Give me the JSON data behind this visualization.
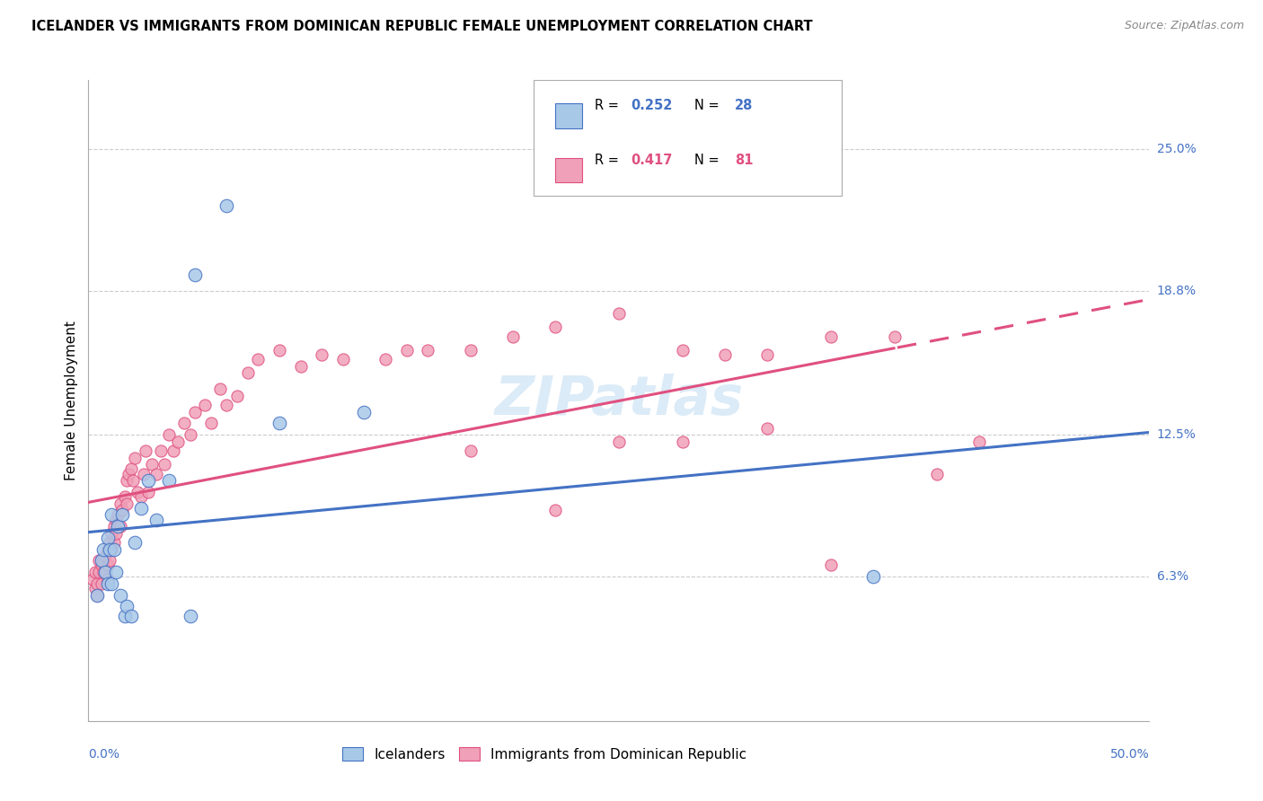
{
  "title": "ICELANDER VS IMMIGRANTS FROM DOMINICAN REPUBLIC FEMALE UNEMPLOYMENT CORRELATION CHART",
  "source": "Source: ZipAtlas.com",
  "ylabel": "Female Unemployment",
  "color_blue": "#A8C8E8",
  "color_pink": "#F0A0B8",
  "line_blue": "#4472C4",
  "line_pink": "#E05080",
  "watermark": "ZIPatlas",
  "right_ytick_labels": [
    "25.0%",
    "18.8%",
    "12.5%",
    "6.3%"
  ],
  "right_ytick_vals": [
    0.25,
    0.188,
    0.125,
    0.063
  ],
  "xmin": 0.0,
  "xmax": 0.5,
  "ymin": 0.0,
  "ymax": 0.28,
  "ice_x": [
    0.004,
    0.006,
    0.007,
    0.008,
    0.009,
    0.009,
    0.01,
    0.011,
    0.011,
    0.012,
    0.013,
    0.014,
    0.015,
    0.016,
    0.017,
    0.018,
    0.02,
    0.022,
    0.025,
    0.028,
    0.032,
    0.038,
    0.05,
    0.065,
    0.09,
    0.13,
    0.37,
    0.048
  ],
  "ice_y": [
    0.055,
    0.07,
    0.075,
    0.065,
    0.06,
    0.08,
    0.075,
    0.06,
    0.09,
    0.075,
    0.065,
    0.085,
    0.055,
    0.09,
    0.046,
    0.05,
    0.046,
    0.078,
    0.093,
    0.105,
    0.088,
    0.105,
    0.195,
    0.225,
    0.13,
    0.135,
    0.063,
    0.046
  ],
  "dom_x": [
    0.002,
    0.003,
    0.003,
    0.004,
    0.004,
    0.005,
    0.005,
    0.006,
    0.006,
    0.007,
    0.007,
    0.008,
    0.008,
    0.009,
    0.009,
    0.009,
    0.01,
    0.01,
    0.011,
    0.011,
    0.012,
    0.012,
    0.013,
    0.013,
    0.014,
    0.015,
    0.015,
    0.016,
    0.017,
    0.018,
    0.018,
    0.019,
    0.02,
    0.021,
    0.022,
    0.023,
    0.025,
    0.026,
    0.027,
    0.028,
    0.03,
    0.032,
    0.034,
    0.036,
    0.038,
    0.04,
    0.042,
    0.045,
    0.048,
    0.05,
    0.055,
    0.058,
    0.062,
    0.065,
    0.07,
    0.075,
    0.08,
    0.09,
    0.1,
    0.11,
    0.12,
    0.14,
    0.16,
    0.18,
    0.2,
    0.22,
    0.25,
    0.28,
    0.3,
    0.32,
    0.35,
    0.38,
    0.4,
    0.18,
    0.25,
    0.32,
    0.35,
    0.42,
    0.22,
    0.15,
    0.28
  ],
  "dom_y": [
    0.062,
    0.058,
    0.065,
    0.06,
    0.055,
    0.065,
    0.07,
    0.06,
    0.068,
    0.065,
    0.07,
    0.072,
    0.065,
    0.075,
    0.068,
    0.062,
    0.078,
    0.07,
    0.082,
    0.075,
    0.085,
    0.078,
    0.088,
    0.082,
    0.09,
    0.085,
    0.095,
    0.092,
    0.098,
    0.105,
    0.095,
    0.108,
    0.11,
    0.105,
    0.115,
    0.1,
    0.098,
    0.108,
    0.118,
    0.1,
    0.112,
    0.108,
    0.118,
    0.112,
    0.125,
    0.118,
    0.122,
    0.13,
    0.125,
    0.135,
    0.138,
    0.13,
    0.145,
    0.138,
    0.142,
    0.152,
    0.158,
    0.162,
    0.155,
    0.16,
    0.158,
    0.158,
    0.162,
    0.162,
    0.168,
    0.172,
    0.178,
    0.162,
    0.16,
    0.16,
    0.168,
    0.168,
    0.108,
    0.118,
    0.122,
    0.128,
    0.068,
    0.122,
    0.092,
    0.162,
    0.122
  ]
}
